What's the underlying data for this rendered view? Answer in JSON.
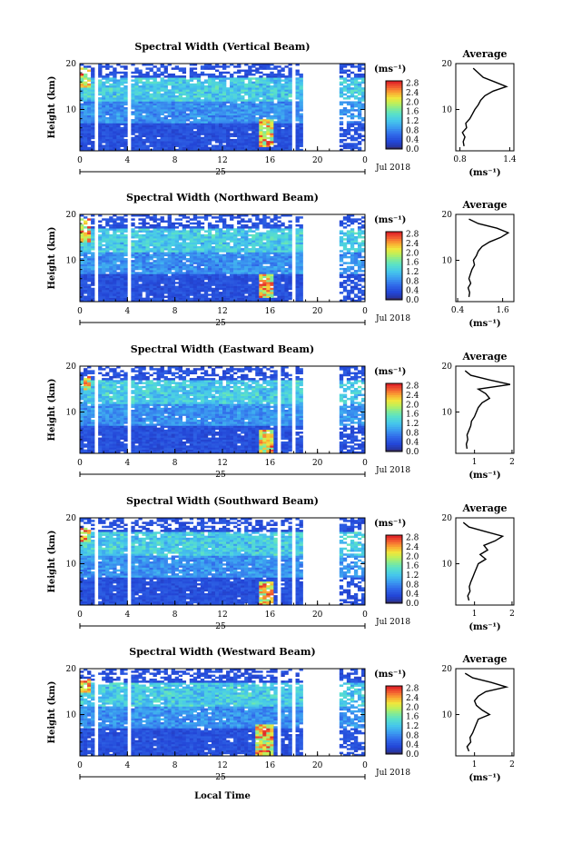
{
  "figure": {
    "x_axis_label": "Local Time",
    "date_label": "Jul 2018",
    "day_label": "25",
    "y_axis_label": "Height (km)",
    "colorbar_unit": "(ms⁻¹)",
    "colorbar_ticks": [
      "0.0",
      "0.4",
      "0.8",
      "1.2",
      "1.6",
      "2.0",
      "2.4",
      "2.8"
    ],
    "average_title": "Average",
    "average_unit": "(ms⁻¹)"
  },
  "chart_data": [
    {
      "type": "heatmap",
      "title": "Spectral Width (Vertical Beam)",
      "xlabel": "Local Time",
      "ylabel": "Height (km)",
      "x_ticks": [
        "0",
        "4",
        "8",
        "12",
        "16",
        "20",
        "0"
      ],
      "y_ticks": [
        "10",
        "20"
      ],
      "xlim": [
        0,
        24
      ],
      "ylim": [
        1,
        20
      ],
      "colorscale": {
        "range": [
          0,
          2.9
        ],
        "ticks": [
          "0.0",
          "0.4",
          "0.8",
          "1.2",
          "1.6",
          "2.0",
          "2.4",
          "2.8"
        ],
        "unit": "(ms⁻¹)"
      },
      "data_gaps_hours": [
        [
          1.1,
          1.5
        ],
        [
          4.0,
          4.2
        ],
        [
          18.0,
          18.3
        ],
        [
          18.9,
          19.3
        ],
        [
          19.4,
          21.8
        ]
      ],
      "high_width_regions": [
        {
          "t": [
            15.2,
            16.3
          ],
          "h": [
            2,
            8
          ],
          "max": 2.8
        },
        {
          "t": [
            0,
            0.9
          ],
          "h": [
            15,
            19
          ],
          "max": 2.6
        }
      ],
      "average_profile": {
        "title": "Average",
        "xlabel": "(ms⁻¹)",
        "xlim": [
          0.75,
          1.45
        ],
        "x_ticks": [
          "0.8",
          "1.4"
        ],
        "y_ticks": [
          "10",
          "20"
        ],
        "height_km": [
          2,
          3,
          4,
          5,
          6,
          7,
          8,
          9,
          10,
          11,
          12,
          13,
          14,
          15,
          16,
          17,
          18,
          19
        ],
        "value": [
          0.85,
          0.84,
          0.86,
          0.83,
          0.88,
          0.87,
          0.92,
          0.95,
          0.98,
          1.02,
          1.05,
          1.1,
          1.2,
          1.36,
          1.22,
          1.08,
          1.02,
          0.96
        ]
      }
    },
    {
      "type": "heatmap",
      "title": "Spectral Width (Northward Beam)",
      "xlabel": "Local Time",
      "ylabel": "Height (km)",
      "x_ticks": [
        "0",
        "4",
        "8",
        "12",
        "16",
        "20",
        "0"
      ],
      "y_ticks": [
        "10",
        "20"
      ],
      "xlim": [
        0,
        24
      ],
      "ylim": [
        1,
        20
      ],
      "colorscale": {
        "range": [
          0,
          2.9
        ],
        "ticks": [
          "0.0",
          "0.4",
          "0.8",
          "1.2",
          "1.6",
          "2.0",
          "2.4",
          "2.8"
        ],
        "unit": "(ms⁻¹)"
      },
      "data_gaps_hours": [
        [
          1.1,
          1.5
        ],
        [
          4.0,
          4.2
        ],
        [
          5.7,
          5.9
        ],
        [
          18.0,
          18.3
        ],
        [
          18.9,
          19.3
        ],
        [
          19.4,
          21.8
        ]
      ],
      "high_width_regions": [
        {
          "t": [
            15.0,
            16.4
          ],
          "h": [
            2,
            7
          ],
          "max": 2.8
        },
        {
          "t": [
            0,
            1.0
          ],
          "h": [
            14,
            19
          ],
          "max": 2.6
        }
      ],
      "average_profile": {
        "title": "Average",
        "xlabel": "(ms⁻¹)",
        "xlim": [
          0.35,
          1.9
        ],
        "x_ticks": [
          "0.4",
          "1.6"
        ],
        "y_ticks": [
          "10",
          "20"
        ],
        "height_km": [
          2,
          3,
          4,
          5,
          6,
          7,
          8,
          9,
          10,
          11,
          12,
          13,
          14,
          15,
          16,
          17,
          18,
          19
        ],
        "value": [
          0.7,
          0.72,
          0.68,
          0.75,
          0.7,
          0.74,
          0.78,
          0.85,
          0.82,
          0.9,
          0.95,
          1.05,
          1.25,
          1.55,
          1.75,
          1.45,
          0.95,
          0.7
        ]
      }
    },
    {
      "type": "heatmap",
      "title": "Spectral Width (Eastward Beam)",
      "xlabel": "Local Time",
      "ylabel": "Height (km)",
      "x_ticks": [
        "0",
        "4",
        "8",
        "12",
        "16",
        "20",
        "0"
      ],
      "y_ticks": [
        "10",
        "20"
      ],
      "xlim": [
        0,
        24
      ],
      "ylim": [
        1,
        20
      ],
      "colorscale": {
        "range": [
          0,
          2.9
        ],
        "ticks": [
          "0.0",
          "0.4",
          "0.8",
          "1.2",
          "1.6",
          "2.0",
          "2.4",
          "2.8"
        ],
        "unit": "(ms⁻¹)"
      },
      "data_gaps_hours": [
        [
          1.1,
          1.5
        ],
        [
          4.0,
          4.2
        ],
        [
          5.7,
          5.9
        ],
        [
          16.7,
          17.0
        ],
        [
          18.0,
          18.3
        ],
        [
          18.9,
          19.3
        ],
        [
          19.4,
          21.8
        ]
      ],
      "high_width_regions": [
        {
          "t": [
            15.0,
            16.2
          ],
          "h": [
            1,
            6
          ],
          "max": 2.8
        },
        {
          "t": [
            0.3,
            1.0
          ],
          "h": [
            15,
            18
          ],
          "max": 2.6
        }
      ],
      "average_profile": {
        "title": "Average",
        "xlabel": "(ms⁻¹)",
        "xlim": [
          0.5,
          2.05
        ],
        "x_ticks": [
          "1",
          "2"
        ],
        "y_ticks": [
          "10",
          "20"
        ],
        "height_km": [
          2,
          3,
          4,
          5,
          6,
          7,
          8,
          9,
          10,
          11,
          12,
          13,
          14,
          15,
          16,
          17,
          18,
          19
        ],
        "value": [
          0.8,
          0.78,
          0.82,
          0.8,
          0.85,
          0.9,
          0.92,
          1.0,
          1.05,
          1.1,
          1.2,
          1.4,
          1.3,
          1.1,
          1.95,
          1.4,
          0.9,
          0.75
        ]
      }
    },
    {
      "type": "heatmap",
      "title": "Spectral Width (Southward Beam)",
      "xlabel": "Local Time",
      "ylabel": "Height (km)",
      "x_ticks": [
        "0",
        "4",
        "8",
        "12",
        "16",
        "20",
        "0"
      ],
      "y_ticks": [
        "10",
        "20"
      ],
      "xlim": [
        0,
        24
      ],
      "ylim": [
        1,
        20
      ],
      "colorscale": {
        "range": [
          0,
          2.9
        ],
        "ticks": [
          "0.0",
          "0.4",
          "0.8",
          "1.2",
          "1.6",
          "2.0",
          "2.4",
          "2.8"
        ],
        "unit": "(ms⁻¹)"
      },
      "data_gaps_hours": [
        [
          1.1,
          1.5
        ],
        [
          4.0,
          4.2
        ],
        [
          5.7,
          5.9
        ],
        [
          16.7,
          17.0
        ],
        [
          18.0,
          18.3
        ],
        [
          18.9,
          19.3
        ],
        [
          19.4,
          21.8
        ]
      ],
      "high_width_regions": [
        {
          "t": [
            15.0,
            16.2
          ],
          "h": [
            1,
            6
          ],
          "max": 2.8
        },
        {
          "t": [
            0,
            0.8
          ],
          "h": [
            15,
            18
          ],
          "max": 2.4
        }
      ],
      "average_profile": {
        "title": "Average",
        "xlabel": "(ms⁻¹)",
        "xlim": [
          0.5,
          2.05
        ],
        "x_ticks": [
          "1",
          "2"
        ],
        "y_ticks": [
          "10",
          "20"
        ],
        "height_km": [
          2,
          3,
          4,
          5,
          6,
          7,
          8,
          9,
          10,
          11,
          12,
          13,
          14,
          15,
          16,
          17,
          18,
          19
        ],
        "value": [
          0.85,
          0.82,
          0.88,
          0.86,
          0.9,
          0.95,
          1.0,
          1.05,
          1.1,
          1.3,
          1.15,
          1.35,
          1.25,
          1.55,
          1.75,
          1.3,
          0.85,
          0.7
        ]
      }
    },
    {
      "type": "heatmap",
      "title": "Spectral Width (Westward Beam)",
      "xlabel": "Local Time",
      "ylabel": "Height (km)",
      "x_ticks": [
        "0",
        "4",
        "8",
        "12",
        "16",
        "20",
        "0"
      ],
      "y_ticks": [
        "10",
        "20"
      ],
      "xlim": [
        0,
        24
      ],
      "ylim": [
        1,
        20
      ],
      "colorscale": {
        "range": [
          0,
          2.9
        ],
        "ticks": [
          "0.0",
          "0.4",
          "0.8",
          "1.2",
          "1.6",
          "2.0",
          "2.4",
          "2.8"
        ],
        "unit": "(ms⁻¹)"
      },
      "data_gaps_hours": [
        [
          1.1,
          1.5
        ],
        [
          4.0,
          4.2
        ],
        [
          5.7,
          5.9
        ],
        [
          16.7,
          17.0
        ],
        [
          18.0,
          18.3
        ],
        [
          18.9,
          19.3
        ],
        [
          19.4,
          21.8
        ]
      ],
      "high_width_regions": [
        {
          "t": [
            14.8,
            16.3
          ],
          "h": [
            1,
            8
          ],
          "max": 2.8
        },
        {
          "t": [
            0,
            0.9
          ],
          "h": [
            15,
            18
          ],
          "max": 2.6
        }
      ],
      "average_profile": {
        "title": "Average",
        "xlabel": "(ms⁻¹)",
        "xlim": [
          0.5,
          2.05
        ],
        "x_ticks": [
          "1",
          "2"
        ],
        "y_ticks": [
          "10",
          "20"
        ],
        "height_km": [
          2,
          3,
          4,
          5,
          6,
          7,
          8,
          9,
          10,
          11,
          12,
          13,
          14,
          15,
          16,
          17,
          18,
          19
        ],
        "value": [
          0.85,
          0.8,
          0.9,
          0.88,
          0.95,
          1.0,
          1.05,
          1.1,
          1.4,
          1.2,
          1.05,
          1.0,
          1.1,
          1.3,
          1.85,
          1.45,
          0.95,
          0.75
        ]
      }
    }
  ]
}
